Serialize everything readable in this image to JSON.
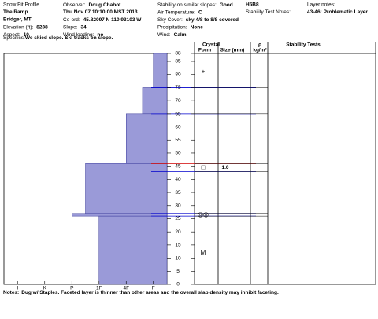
{
  "header": {
    "columns": [
      [
        {
          "text": "Snow Pit Profile"
        },
        {
          "text": "The Ramp",
          "bold": true
        },
        {
          "text": "Bridger, MT",
          "bold": true
        },
        {
          "label": "Elevation (ft):",
          "value": "8238"
        },
        {
          "label": "Aspect:",
          "value": "10"
        }
      ],
      [
        {
          "label": "Observer:",
          "value": "Doug Chabot"
        },
        {
          "text": "Thu Nov 07 10:10:00 MST 2013",
          "bold": true
        },
        {
          "label": "Co-ord:",
          "value": "45.82097 N 110.93103 W"
        },
        {
          "label": "Slope:",
          "value": "34"
        },
        {
          "label": "Wind loading:",
          "value": "no"
        }
      ],
      [
        {
          "label": "Stability on similar slopes:",
          "value": "Good"
        },
        {
          "label": "Air Temperature:",
          "value": "C"
        },
        {
          "label": "Sky Cover:",
          "value": "sky 4/8 to 8/8 covered"
        },
        {
          "label": "Precipitation:",
          "value": "None"
        },
        {
          "label": "Wind:",
          "value": "Calm"
        }
      ],
      [
        {
          "text": "H5B8",
          "bold": true
        },
        {
          "text": "Stability Test Notes:"
        }
      ],
      [
        {
          "text": "Layer notes:"
        },
        {
          "text": "43-46: Problematic Layer",
          "bold": true
        }
      ]
    ],
    "specifics": {
      "label": "Specifics:",
      "value": "We skied slope. Ski tracks on slope."
    }
  },
  "table_headers": {
    "crystal": "Crystal",
    "form": "Form",
    "size": "Size (mm)",
    "rho": "ρ",
    "density_unit": "kg/m³",
    "stability": "Stability Tests"
  },
  "chart_data": {
    "type": "profile",
    "ylim": [
      0,
      88
    ],
    "yticks": [
      0,
      5,
      10,
      15,
      20,
      25,
      30,
      35,
      40,
      45,
      50,
      55,
      60,
      65,
      70,
      75,
      80,
      85,
      88
    ],
    "xlim": [
      6.5,
      0.5
    ],
    "xticks": [
      {
        "value": 6,
        "label": "I"
      },
      {
        "value": 5,
        "label": "K"
      },
      {
        "value": 4,
        "label": "P"
      },
      {
        "value": 3,
        "label": "1F"
      },
      {
        "value": 2,
        "label": "4F"
      },
      {
        "value": 1,
        "label": "F"
      }
    ],
    "color": "#9a9ad8",
    "layers": [
      {
        "top": 88,
        "bottom": 75,
        "hardness": 1
      },
      {
        "top": 75,
        "bottom": 65,
        "hardness": 1.4
      },
      {
        "top": 65,
        "bottom": 46,
        "hardness": 2
      },
      {
        "top": 46,
        "bottom": 27,
        "hardness": 3.5
      },
      {
        "top": 27,
        "bottom": 26,
        "hardness": 4
      },
      {
        "top": 26,
        "bottom": 0,
        "hardness": 3
      }
    ],
    "boundaries": [
      {
        "depth": 75,
        "color": "#0000cc"
      },
      {
        "depth": 65,
        "color": "#0000cc"
      },
      {
        "depth": 46,
        "color": "#d00000"
      },
      {
        "depth": 43,
        "color": "#0000cc"
      },
      {
        "depth": 27,
        "color": "#0000cc"
      },
      {
        "depth": 26,
        "color": "#0000cc"
      }
    ],
    "crystals": [
      {
        "depth": 81,
        "form": "+"
      },
      {
        "depth": 44.5,
        "form": "□",
        "size": "1.0"
      },
      {
        "depth": 26.5,
        "form": "◎◎"
      },
      {
        "depth": 12,
        "form": "M"
      }
    ]
  },
  "notes": {
    "label": "Notes:",
    "value": "Dug w/ Staples. Faceted layer is thinner than other areas and the overall slab density may inhibit faceting."
  }
}
